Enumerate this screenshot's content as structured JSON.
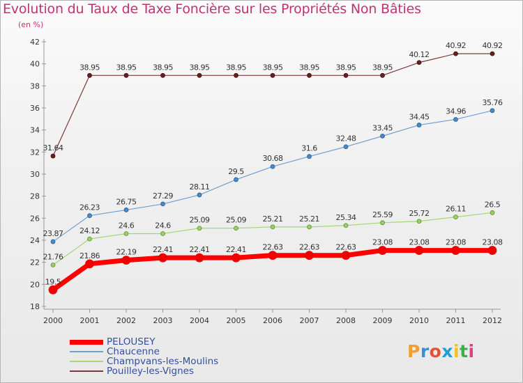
{
  "header": {
    "title": "Evolution du Taux de Taxe Foncière sur les Propriétés Non Bâties",
    "subtitle": "(en %)"
  },
  "chart_data": {
    "type": "line",
    "title": "Evolution du Taux de Taxe Foncière sur les Propriétés Non Bâties",
    "ylabel": "(en %)",
    "xlabel": "",
    "x": [
      "2000",
      "2001",
      "2002",
      "2003",
      "2004",
      "2005",
      "2006",
      "2007",
      "2008",
      "2009",
      "2010",
      "2011",
      "2012"
    ],
    "ylim": [
      18,
      42
    ],
    "yticks": [
      18,
      20,
      22,
      24,
      26,
      28,
      30,
      32,
      34,
      36,
      38,
      40,
      42
    ],
    "grid": false,
    "legend_position": "bottom-left",
    "series": [
      {
        "name": "PELOUSEY",
        "color": "#ff0000",
        "values": [
          19.5,
          21.86,
          22.19,
          22.41,
          22.41,
          22.41,
          22.63,
          22.63,
          22.63,
          23.08,
          23.08,
          23.08,
          23.08
        ],
        "labels": [
          "19.5",
          "21.86",
          "22.19",
          "22.41",
          "22.41",
          "22.41",
          "22.63",
          "22.63",
          "22.63",
          "23.08",
          "23.08",
          "23.08",
          "23.08"
        ]
      },
      {
        "name": "Chaucenne",
        "color": "#6fa0d0",
        "values": [
          23.87,
          26.23,
          26.75,
          27.29,
          28.11,
          29.5,
          30.68,
          31.6,
          32.48,
          33.45,
          34.45,
          34.96,
          35.76
        ],
        "labels": [
          "23.87",
          "26.23",
          "26.75",
          "27.29",
          "28.11",
          "29.5",
          "30.68",
          "31.6",
          "32.48",
          "33.45",
          "34.45",
          "34.96",
          "35.76"
        ]
      },
      {
        "name": "Champvans-les-Moulins",
        "color": "#a5d679",
        "values": [
          21.76,
          24.12,
          24.6,
          24.6,
          25.09,
          25.09,
          25.21,
          25.21,
          25.34,
          25.59,
          25.72,
          26.11,
          26.5
        ],
        "labels": [
          "21.76",
          "24.12",
          "24.6",
          "24.6",
          "25.09",
          "25.09",
          "25.21",
          "25.21",
          "25.34",
          "25.59",
          "25.72",
          "26.11",
          "26.5"
        ]
      },
      {
        "name": "Pouilley-les-Vignes",
        "color": "#7b3a3a",
        "values": [
          31.64,
          38.95,
          38.95,
          38.95,
          38.95,
          38.95,
          38.95,
          38.95,
          38.95,
          38.95,
          40.12,
          40.92,
          40.92
        ],
        "labels": [
          "31.64",
          "38.95",
          "38.95",
          "38.95",
          "38.95",
          "38.95",
          "38.95",
          "38.95",
          "38.95",
          "38.95",
          "40.12",
          "40.92",
          "40.92"
        ]
      }
    ]
  },
  "logo": {
    "text": "Proxiti"
  }
}
